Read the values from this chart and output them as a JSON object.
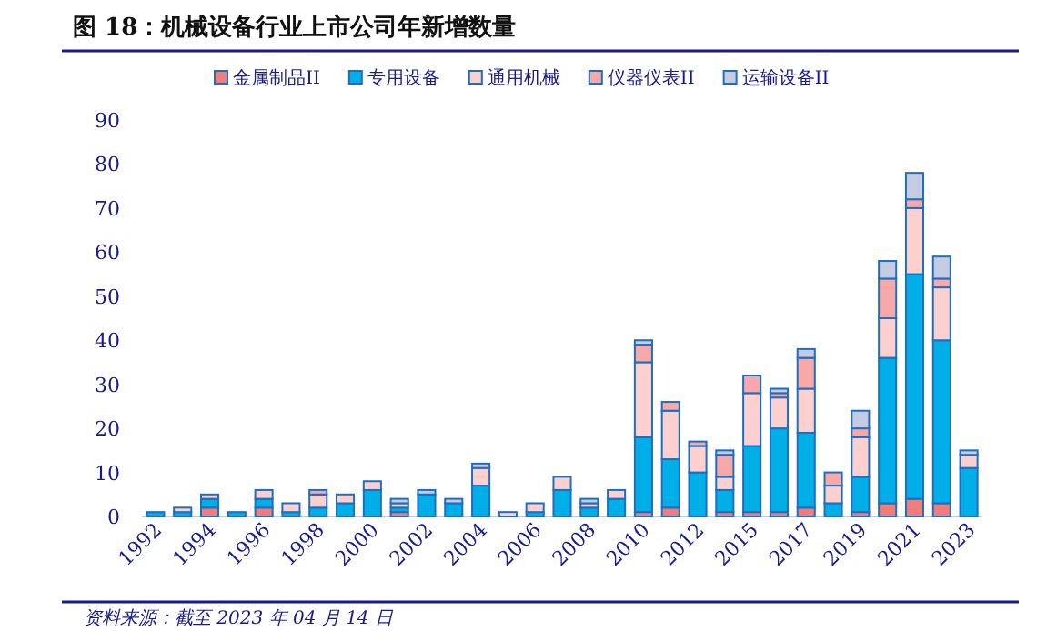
{
  "chart_data": {
    "type": "bar",
    "stacked": true,
    "title": "图 18：机械设备行业上市公司年新增数量",
    "categories": [
      "1992",
      null,
      "1994",
      null,
      "1996",
      null,
      "1998",
      null,
      "2000",
      null,
      "2002",
      null,
      "2004",
      null,
      "2006",
      null,
      "2008",
      null,
      "2010",
      null,
      "2012",
      null,
      "2015",
      null,
      "2017",
      null,
      "2019",
      null,
      "2021",
      null,
      "2023"
    ],
    "series": [
      {
        "name": "金属制品II",
        "color": "#f07c7c",
        "values": [
          0,
          0,
          2,
          0,
          2,
          0,
          0,
          0,
          0,
          1,
          0,
          0,
          0,
          0,
          0,
          0,
          0,
          0,
          1,
          2,
          0,
          1,
          1,
          1,
          2,
          0,
          1,
          3,
          4,
          3,
          0
        ]
      },
      {
        "name": "专用设备",
        "color": "#00aee8",
        "values": [
          1,
          1,
          2,
          1,
          2,
          1,
          2,
          3,
          6,
          1,
          5,
          3,
          7,
          0,
          1,
          6,
          2,
          4,
          17,
          11,
          10,
          5,
          15,
          19,
          17,
          3,
          8,
          33,
          51,
          37,
          11
        ]
      },
      {
        "name": "通用机械",
        "color": "#fdd0d0",
        "values": [
          0,
          1,
          1,
          0,
          2,
          2,
          3,
          2,
          2,
          1,
          0,
          0,
          4,
          1,
          2,
          3,
          1,
          2,
          17,
          11,
          6,
          3,
          12,
          7,
          10,
          4,
          9,
          9,
          15,
          12,
          3
        ]
      },
      {
        "name": "仪器仪表II",
        "color": "#f7a8a8",
        "values": [
          0,
          0,
          0,
          0,
          0,
          0,
          1,
          0,
          0,
          0,
          0,
          0,
          0,
          0,
          0,
          0,
          0,
          0,
          4,
          2,
          1,
          5,
          4,
          1,
          7,
          3,
          2,
          9,
          2,
          2,
          0
        ]
      },
      {
        "name": "运输设备II",
        "color": "#c5cbe3",
        "values": [
          0,
          0,
          0,
          0,
          0,
          0,
          0,
          0,
          0,
          1,
          1,
          1,
          1,
          0,
          0,
          0,
          1,
          0,
          1,
          0,
          0,
          1,
          0,
          1,
          2,
          0,
          4,
          4,
          6,
          5,
          1
        ]
      }
    ],
    "ylim": [
      0,
      90
    ],
    "yticks": [
      0,
      10,
      20,
      30,
      40,
      50,
      60,
      70,
      80,
      90
    ],
    "legend": "top",
    "annotations": [
      "资料来源：截至 2023 年 04 月 14 日"
    ]
  }
}
